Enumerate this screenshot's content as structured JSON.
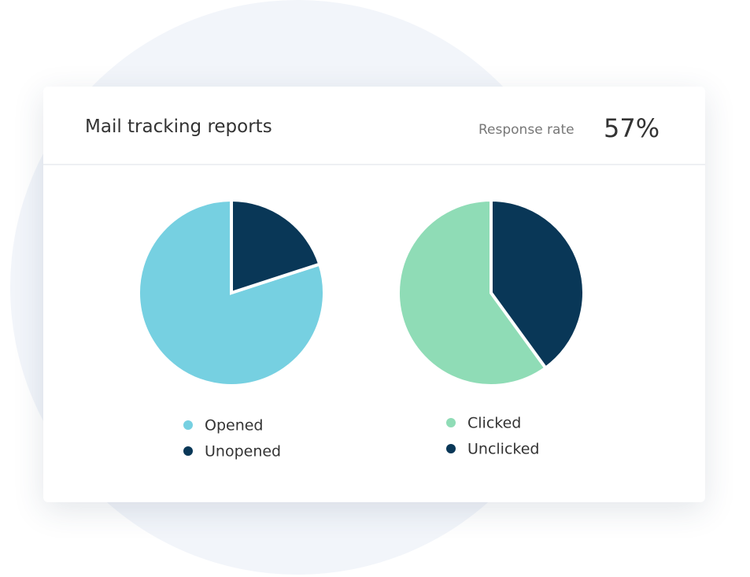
{
  "header": {
    "title": "Mail tracking reports",
    "response_rate_label": "Response rate",
    "response_rate": "57%"
  },
  "chart_data": [
    {
      "type": "pie",
      "categories": [
        "Opened",
        "Unopened"
      ],
      "values": [
        80,
        20
      ],
      "colors": [
        "#76d0e1",
        "#093757"
      ]
    },
    {
      "type": "pie",
      "categories": [
        "Clicked",
        "Unclicked"
      ],
      "values": [
        60,
        40
      ],
      "colors": [
        "#8fdcb6",
        "#093757"
      ]
    }
  ]
}
